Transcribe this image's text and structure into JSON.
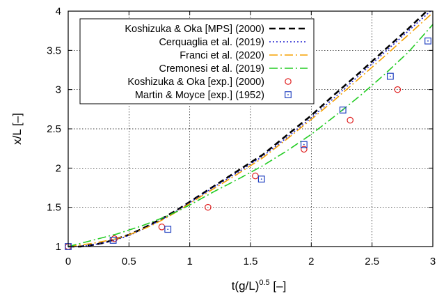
{
  "chart_data": {
    "type": "line",
    "xlabel": "t(g/L)",
    "xlabel_sup": "0.5",
    "xlabel_unit": " [–]",
    "ylabel": "x/L [–]",
    "xlim": [
      0,
      3
    ],
    "ylim": [
      1,
      4
    ],
    "x_ticks": [
      "0",
      "0.5",
      "1",
      "1.5",
      "2",
      "2.5",
      "3"
    ],
    "y_ticks": [
      "1",
      "1.5",
      "2",
      "2.5",
      "3",
      "3.5",
      "4"
    ],
    "grid": true,
    "legend_position": "top-left",
    "series": [
      {
        "name": "Koshizuka & Oka [MPS] (2000)",
        "style": "long-dash",
        "color": "#000000",
        "kind": "line",
        "x": [
          0,
          0.1,
          0.2,
          0.3,
          0.4,
          0.5,
          0.6,
          0.7,
          0.8,
          0.9,
          1.0,
          1.2,
          1.4,
          1.6,
          1.8,
          2.0,
          2.2,
          2.4,
          2.6,
          2.8,
          2.95
        ],
        "y": [
          1.0,
          1.0,
          1.02,
          1.05,
          1.1,
          1.15,
          1.22,
          1.3,
          1.38,
          1.47,
          1.57,
          1.77,
          1.97,
          2.17,
          2.42,
          2.67,
          2.95,
          3.22,
          3.5,
          3.78,
          4.0
        ]
      },
      {
        "name": "Cerquaglia et al. (2019)",
        "style": "dotted",
        "color": "#1f1fcf",
        "kind": "line",
        "x": [
          0,
          0.1,
          0.2,
          0.3,
          0.4,
          0.5,
          0.6,
          0.7,
          0.8,
          0.9,
          1.0,
          1.2,
          1.4,
          1.6,
          1.8,
          2.0,
          2.2,
          2.4,
          2.6,
          2.8,
          2.98
        ],
        "y": [
          1.0,
          1.0,
          1.02,
          1.05,
          1.09,
          1.14,
          1.21,
          1.29,
          1.37,
          1.46,
          1.56,
          1.76,
          1.95,
          2.15,
          2.39,
          2.64,
          2.91,
          3.19,
          3.47,
          3.75,
          4.0
        ]
      },
      {
        "name": "Franci et al. (2020)",
        "style": "dash-dot",
        "color": "#f5a000",
        "kind": "line",
        "x": [
          0,
          0.1,
          0.2,
          0.3,
          0.4,
          0.5,
          0.6,
          0.7,
          0.8,
          0.9,
          1.0,
          1.2,
          1.4,
          1.6,
          1.8,
          2.0,
          2.2,
          2.4,
          2.6,
          2.8,
          3.0
        ],
        "y": [
          1.0,
          1.02,
          1.04,
          1.07,
          1.1,
          1.15,
          1.21,
          1.28,
          1.36,
          1.45,
          1.55,
          1.74,
          1.93,
          2.13,
          2.37,
          2.62,
          2.88,
          3.15,
          3.42,
          3.7,
          3.98
        ]
      },
      {
        "name": "Cremonesi et al. (2019)",
        "style": "dash-dot",
        "color": "#22cc22",
        "kind": "line",
        "x": [
          0,
          0.1,
          0.2,
          0.3,
          0.4,
          0.5,
          0.6,
          0.7,
          0.8,
          0.9,
          1.0,
          1.2,
          1.4,
          1.6,
          1.8,
          2.0,
          2.2,
          2.4,
          2.6,
          2.8,
          3.0
        ],
        "y": [
          1.0,
          1.04,
          1.08,
          1.12,
          1.16,
          1.21,
          1.26,
          1.32,
          1.38,
          1.45,
          1.53,
          1.7,
          1.86,
          2.03,
          2.22,
          2.43,
          2.67,
          2.92,
          3.19,
          3.48,
          3.83
        ]
      },
      {
        "name": "Koshizuka & Oka [exp.] (2000)",
        "style": "circle",
        "color": "#e02020",
        "kind": "points",
        "x": [
          0,
          0.38,
          0.77,
          1.15,
          1.54,
          1.94,
          2.32,
          2.71
        ],
        "y": [
          1.0,
          1.1,
          1.25,
          1.5,
          1.9,
          2.24,
          2.61,
          3.0
        ]
      },
      {
        "name": "Martin & Moyce [exp.] (1952)",
        "style": "square",
        "color": "#2040c0",
        "kind": "points",
        "x": [
          0,
          0.37,
          0.82,
          1.59,
          1.94,
          2.26,
          2.65,
          2.96
        ],
        "y": [
          1.0,
          1.08,
          1.22,
          1.86,
          2.3,
          2.74,
          3.17,
          3.62
        ]
      }
    ]
  }
}
